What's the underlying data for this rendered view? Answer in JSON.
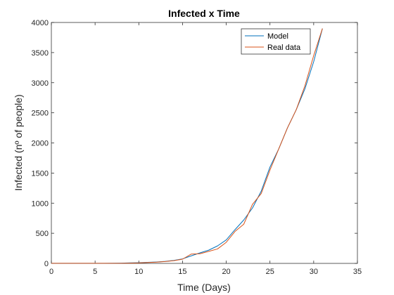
{
  "chart_data": {
    "type": "line",
    "title": "Infected x Time",
    "xlabel": "Time (Days)",
    "ylabel": "Infected (nº of people)",
    "xlim": [
      0,
      35
    ],
    "ylim": [
      0,
      4000
    ],
    "xticks": [
      0,
      5,
      10,
      15,
      20,
      25,
      30,
      35
    ],
    "yticks": [
      0,
      500,
      1000,
      1500,
      2000,
      2500,
      3000,
      3500,
      4000
    ],
    "xtick_labels": [
      "0",
      "5",
      "10",
      "15",
      "20",
      "25",
      "30",
      "35"
    ],
    "ytick_labels": [
      "0",
      "500",
      "1000",
      "1500",
      "2000",
      "2500",
      "3000",
      "3500",
      "4000"
    ],
    "grid": false,
    "legend_position": "top-right",
    "series": [
      {
        "name": "Model",
        "color": "#0072BD",
        "x": [
          0,
          1,
          2,
          3,
          4,
          5,
          6,
          7,
          8,
          9,
          10,
          11,
          12,
          13,
          14,
          15,
          16,
          17,
          18,
          19,
          20,
          21,
          22,
          23,
          24,
          25,
          26,
          27,
          28,
          29,
          30,
          31
        ],
        "y": [
          1,
          1,
          1,
          1,
          1,
          2,
          2,
          3,
          5,
          8,
          12,
          17,
          24,
          34,
          50,
          75,
          125,
          175,
          220,
          290,
          390,
          560,
          720,
          920,
          1200,
          1600,
          1900,
          2250,
          2550,
          2900,
          3350,
          3900
        ]
      },
      {
        "name": "Real data",
        "color": "#D95319",
        "x": [
          0,
          1,
          2,
          3,
          4,
          5,
          6,
          7,
          8,
          9,
          10,
          11,
          12,
          13,
          14,
          15,
          16,
          17,
          18,
          19,
          20,
          21,
          22,
          23,
          24,
          25,
          26,
          27,
          28,
          29,
          30,
          31
        ],
        "y": [
          1,
          1,
          1,
          1,
          1,
          1,
          1,
          1,
          2,
          5,
          8,
          15,
          20,
          30,
          45,
          70,
          155,
          160,
          200,
          240,
          350,
          530,
          650,
          980,
          1160,
          1550,
          1900,
          2250,
          2550,
          2950,
          3450,
          3900
        ]
      }
    ]
  }
}
